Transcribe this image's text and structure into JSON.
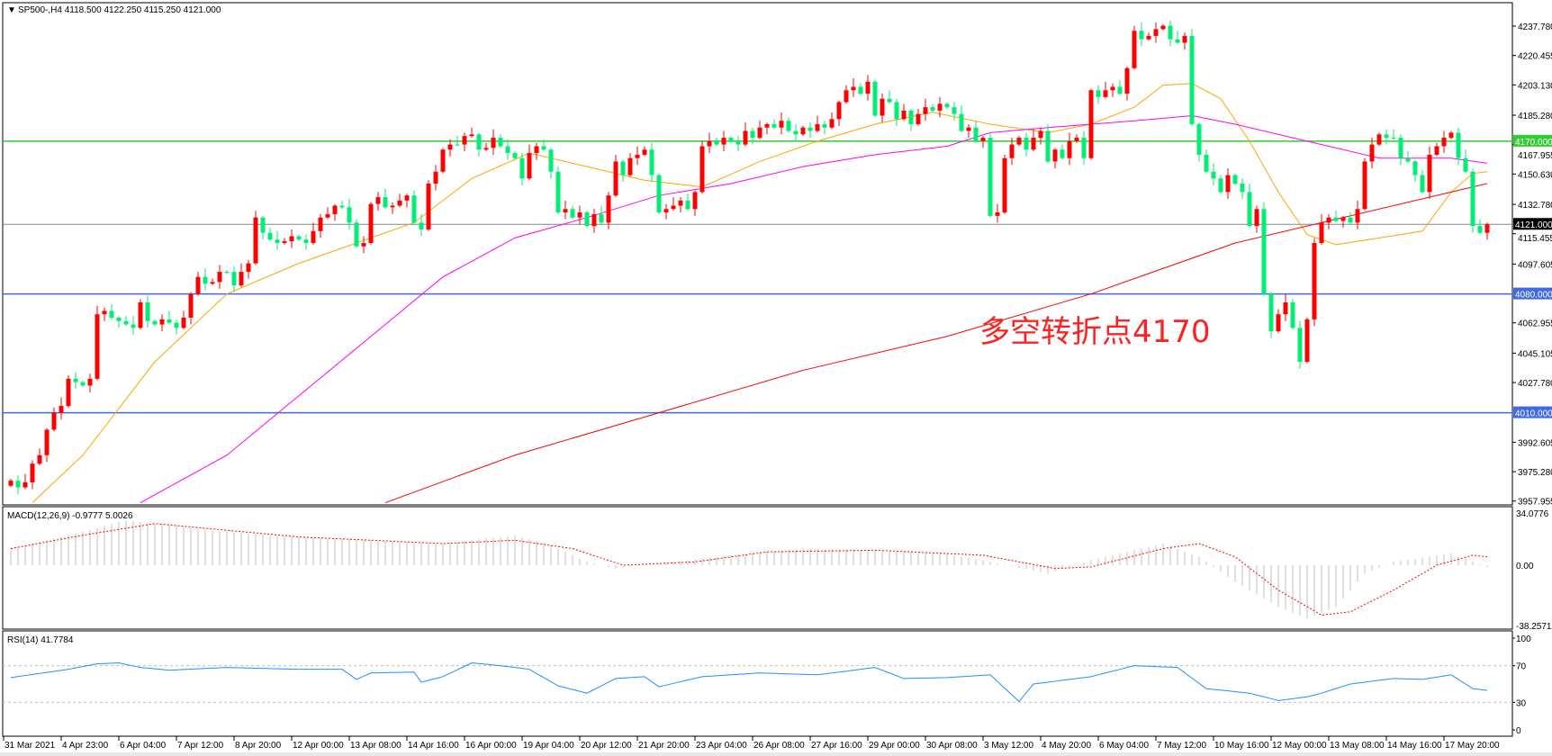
{
  "chart_data": [
    {
      "type": "candlestick",
      "title": "SP500-,H4  4118.500 4122.250 4115.250 4121.000",
      "symbol": "SP500-,H4",
      "ohlc_header": [
        "4118.500",
        "4122.250",
        "4115.250",
        "4121.000"
      ],
      "ylim": [
        3957.955,
        4246
      ],
      "y_ticks": [
        "4237.780",
        "4220.455",
        "4203.130",
        "4185.280",
        "4167.955",
        "4150.630",
        "4132.780",
        "4115.455",
        "4097.605",
        "4062.955",
        "4045.105",
        "4027.780",
        "3992.605",
        "3975.280",
        "3957.955"
      ],
      "x_ticks": [
        "31 Mar 2021",
        "4 Apr 23:00",
        "6 Apr 04:00",
        "7 Apr 12:00",
        "8 Apr 20:00",
        "12 Apr 00:00",
        "13 Apr 08:00",
        "14 Apr 16:00",
        "16 Apr 00:00",
        "19 Apr 04:00",
        "20 Apr 12:00",
        "21 Apr 20:00",
        "23 Apr 04:00",
        "26 Apr 08:00",
        "27 Apr 16:00",
        "29 Apr 00:00",
        "30 Apr 08:00",
        "3 May 12:00",
        "4 May 20:00",
        "6 May 04:00",
        "7 May 12:00",
        "10 May 16:00",
        "12 May 00:00",
        "13 May 08:00",
        "14 May 16:00",
        "17 May 20:00"
      ],
      "closes": [
        3970,
        3966,
        3969,
        3980,
        3985,
        4000,
        4010,
        4014,
        4030,
        4028,
        4026,
        4030,
        4068,
        4070,
        4066,
        4064,
        4062,
        4060,
        4075,
        4064,
        4062,
        4065,
        4063,
        4060,
        4066,
        4080,
        4090,
        4086,
        4087,
        4093,
        4093,
        4085,
        4093,
        4098,
        4125,
        4116,
        4112,
        4110,
        4111,
        4114,
        4112,
        4110,
        4117,
        4125,
        4127,
        4132,
        4131,
        4122,
        4108,
        4110,
        4133,
        4137,
        4131,
        4132,
        4135,
        4138,
        4122,
        4118,
        4145,
        4152,
        4165,
        4168,
        4168,
        4173,
        4174,
        4165,
        4166,
        4172,
        4167,
        4163,
        4160,
        4148,
        4163,
        4167,
        4165,
        4152,
        4128,
        4130,
        4125,
        4128,
        4120,
        4127,
        4122,
        4138,
        4158,
        4150,
        4160,
        4162,
        4165,
        4150,
        4128,
        4130,
        4132,
        4135,
        4130,
        4140,
        4167,
        4170,
        4168,
        4172,
        4170,
        4168,
        4176,
        4172,
        4178,
        4180,
        4178,
        4182,
        4176,
        4174,
        4178,
        4176,
        4180,
        4178,
        4183,
        4193,
        4200,
        4202,
        4198,
        4205,
        4185,
        4195,
        4193,
        4183,
        4188,
        4180,
        4186,
        4190,
        4188,
        4192,
        4190,
        4186,
        4176,
        4178,
        4170,
        4172,
        4126,
        4128,
        4160,
        4168,
        4172,
        4165,
        4172,
        4176,
        4158,
        4165,
        4160,
        4170,
        4172,
        4160,
        4200,
        4196,
        4200,
        4202,
        4198,
        4213,
        4235,
        4230,
        4232,
        4236,
        4238,
        4230,
        4228,
        4232,
        4180,
        4162,
        4152,
        4148,
        4140,
        4150,
        4145,
        4140,
        4120,
        4130,
        4080,
        4058,
        4068,
        4075,
        4060,
        4040,
        4065,
        4110,
        4122,
        4125,
        4123,
        4125,
        4122,
        4130,
        4158,
        4168,
        4174,
        4172,
        4172,
        4160,
        4158,
        4150,
        4140,
        4162,
        4167,
        4172,
        4175,
        4160,
        4152,
        4120,
        4116,
        4121
      ],
      "up_color": "#ff0000",
      "down_color": "#00ee76",
      "moving_averages": [
        {
          "color": "#ffa500",
          "points": [
            [
              3,
              3957
            ],
            [
              10,
              3985
            ],
            [
              20,
              4040
            ],
            [
              30,
              4080
            ],
            [
              40,
              4098
            ],
            [
              50,
              4113
            ],
            [
              56,
              4122
            ],
            [
              64,
              4148
            ],
            [
              72,
              4163
            ],
            [
              80,
              4155
            ],
            [
              88,
              4147
            ],
            [
              96,
              4143
            ],
            [
              104,
              4158
            ],
            [
              112,
              4170
            ],
            [
              120,
              4180
            ],
            [
              128,
              4187
            ],
            [
              136,
              4180
            ],
            [
              144,
              4175
            ],
            [
              150,
              4180
            ],
            [
              156,
              4190
            ],
            [
              160,
              4203
            ],
            [
              164,
              4204
            ],
            [
              168,
              4195
            ],
            [
              172,
              4170
            ],
            [
              176,
              4140
            ],
            [
              180,
              4115
            ],
            [
              184,
              4109
            ],
            [
              190,
              4113
            ],
            [
              196,
              4117
            ],
            [
              200,
              4140
            ],
            [
              203,
              4151
            ],
            [
              205,
              4152
            ]
          ]
        },
        {
          "color": "#ff00ff",
          "points": [
            [
              18,
              3957
            ],
            [
              30,
              3985
            ],
            [
              40,
              4020
            ],
            [
              50,
              4055
            ],
            [
              60,
              4090
            ],
            [
              70,
              4113
            ],
            [
              80,
              4125
            ],
            [
              90,
              4138
            ],
            [
              100,
              4145
            ],
            [
              110,
              4155
            ],
            [
              120,
              4162
            ],
            [
              130,
              4167
            ],
            [
              136,
              4175
            ],
            [
              144,
              4178
            ],
            [
              156,
              4182
            ],
            [
              164,
              4185
            ],
            [
              170,
              4180
            ],
            [
              180,
              4170
            ],
            [
              190,
              4160
            ],
            [
              200,
              4160
            ],
            [
              205,
              4157
            ]
          ]
        },
        {
          "color": "#ff0000",
          "points": [
            [
              52,
              3957
            ],
            [
              70,
              3985
            ],
            [
              90,
              4010
            ],
            [
              110,
              4035
            ],
            [
              130,
              4055
            ],
            [
              150,
              4080
            ],
            [
              170,
              4110
            ],
            [
              185,
              4125
            ],
            [
              200,
              4140
            ],
            [
              205,
              4145
            ]
          ]
        }
      ],
      "horizontal_levels": [
        {
          "value": 4170,
          "label": "4170.000",
          "color": "#32cd32"
        },
        {
          "value": 4080,
          "label": "4080.000",
          "color": "#4169e1"
        },
        {
          "value": 4010,
          "label": "4010.000",
          "color": "#4169e1"
        },
        {
          "value": 4121,
          "label": "4121.000",
          "color": "#808890"
        }
      ],
      "annotation": "多空转折点4170"
    },
    {
      "type": "bar",
      "title": "MACD(12,26,9) -0.9777 5.0026",
      "ylim": [
        -38.2571,
        34.0776
      ],
      "y_ticks": [
        "34.0776",
        "0.00",
        "-38.2571"
      ],
      "histogram_color": "#c0c0c0",
      "signal_color": "#ff0000",
      "histogram": [
        [
          0,
          10
        ],
        [
          10,
          20
        ],
        [
          16,
          27
        ],
        [
          20,
          25
        ],
        [
          30,
          20
        ],
        [
          40,
          17
        ],
        [
          50,
          15
        ],
        [
          60,
          13
        ],
        [
          70,
          18
        ],
        [
          75,
          12
        ],
        [
          80,
          2
        ],
        [
          84,
          -2
        ],
        [
          90,
          1
        ],
        [
          100,
          6
        ],
        [
          110,
          10
        ],
        [
          120,
          9
        ],
        [
          130,
          7
        ],
        [
          136,
          2
        ],
        [
          144,
          -5
        ],
        [
          150,
          3
        ],
        [
          160,
          13
        ],
        [
          165,
          5
        ],
        [
          170,
          -10
        ],
        [
          176,
          -25
        ],
        [
          180,
          -32
        ],
        [
          184,
          -25
        ],
        [
          188,
          -5
        ],
        [
          192,
          2
        ],
        [
          200,
          7
        ],
        [
          205,
          -1
        ]
      ],
      "signal": [
        [
          0,
          10
        ],
        [
          10,
          18
        ],
        [
          20,
          25
        ],
        [
          30,
          21
        ],
        [
          40,
          17
        ],
        [
          50,
          15
        ],
        [
          60,
          13
        ],
        [
          70,
          15
        ],
        [
          78,
          10
        ],
        [
          85,
          0
        ],
        [
          95,
          2
        ],
        [
          105,
          8
        ],
        [
          120,
          9
        ],
        [
          135,
          6
        ],
        [
          145,
          -2
        ],
        [
          150,
          -1
        ],
        [
          160,
          10
        ],
        [
          165,
          13
        ],
        [
          170,
          5
        ],
        [
          176,
          -15
        ],
        [
          182,
          -30
        ],
        [
          186,
          -28
        ],
        [
          192,
          -15
        ],
        [
          198,
          0
        ],
        [
          203,
          6
        ],
        [
          205,
          5
        ]
      ]
    },
    {
      "type": "line",
      "title": "RSI(14) 41.7784",
      "ylim": [
        0,
        100
      ],
      "y_ticks": [
        "100",
        "70",
        "30",
        "0"
      ],
      "levels": [
        70,
        30
      ],
      "color": "#1e90ff",
      "values": [
        [
          0,
          57
        ],
        [
          8,
          66
        ],
        [
          12,
          72
        ],
        [
          15,
          73
        ],
        [
          18,
          68
        ],
        [
          22,
          65
        ],
        [
          30,
          68
        ],
        [
          40,
          66
        ],
        [
          46,
          66
        ],
        [
          48,
          55
        ],
        [
          50,
          62
        ],
        [
          56,
          63
        ],
        [
          57,
          52
        ],
        [
          60,
          58
        ],
        [
          64,
          73
        ],
        [
          68,
          70
        ],
        [
          72,
          66
        ],
        [
          76,
          48
        ],
        [
          80,
          40
        ],
        [
          84,
          56
        ],
        [
          88,
          58
        ],
        [
          90,
          47
        ],
        [
          96,
          58
        ],
        [
          104,
          62
        ],
        [
          112,
          60
        ],
        [
          120,
          68
        ],
        [
          124,
          56
        ],
        [
          130,
          57
        ],
        [
          136,
          60
        ],
        [
          140,
          31
        ],
        [
          142,
          50
        ],
        [
          146,
          54
        ],
        [
          150,
          58
        ],
        [
          156,
          70
        ],
        [
          162,
          68
        ],
        [
          166,
          45
        ],
        [
          172,
          40
        ],
        [
          176,
          32
        ],
        [
          180,
          36
        ],
        [
          182,
          40
        ],
        [
          186,
          50
        ],
        [
          192,
          56
        ],
        [
          196,
          55
        ],
        [
          200,
          60
        ],
        [
          203,
          45
        ],
        [
          205,
          43
        ]
      ]
    }
  ]
}
